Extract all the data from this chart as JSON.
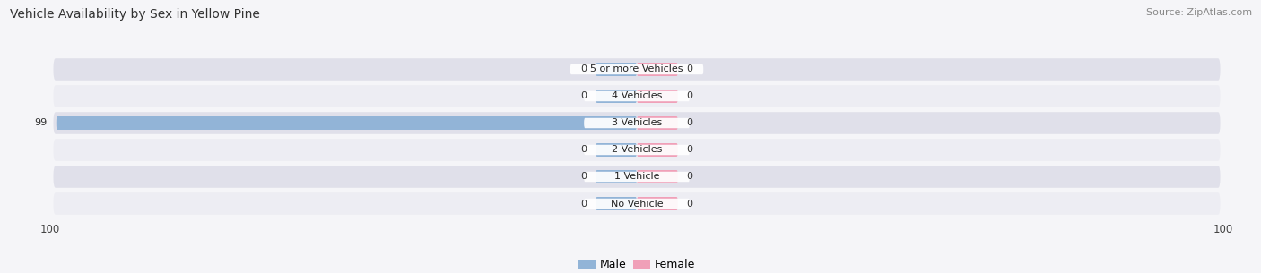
{
  "title": "Vehicle Availability by Sex in Yellow Pine",
  "source": "Source: ZipAtlas.com",
  "categories": [
    "No Vehicle",
    "1 Vehicle",
    "2 Vehicles",
    "3 Vehicles",
    "4 Vehicles",
    "5 or more Vehicles"
  ],
  "male_values": [
    0,
    0,
    0,
    99,
    0,
    0
  ],
  "female_values": [
    0,
    0,
    0,
    0,
    0,
    0
  ],
  "male_color": "#92b4d7",
  "female_color": "#f0a0b8",
  "row_bg_light": "#ededf3",
  "row_bg_dark": "#e0e0ea",
  "xlim_left": -100,
  "xlim_right": 100,
  "legend_male": "Male",
  "legend_female": "Female",
  "bg_color": "#f5f5f8"
}
